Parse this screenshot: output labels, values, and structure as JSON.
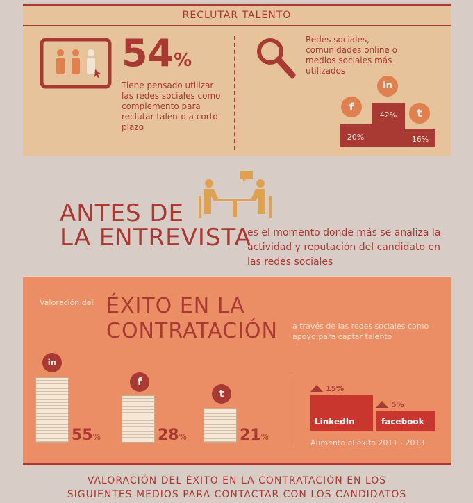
{
  "reclutar": {
    "title": "RECLUTAR TALENTO",
    "stat": "54",
    "stat_unit": "%",
    "description": "Tiene pensado utilizar las redes sociales como complemento para reclutar talento a corto plazo",
    "networks_label": "Redes sociales, comunidades online o medios sociales más utilizados",
    "podium": [
      {
        "network": "facebook",
        "icon": "facebook-icon",
        "value": "20%",
        "glyph": "f"
      },
      {
        "network": "linkedin",
        "icon": "linkedin-icon",
        "value": "42%",
        "glyph": "in"
      },
      {
        "network": "twitter",
        "icon": "twitter-icon",
        "value": "16%",
        "glyph": "t"
      }
    ]
  },
  "antes": {
    "title": "ANTES DE LA ENTREVISTA",
    "title_line1": "ANTES DE",
    "title_line2": "LA ENTREVISTA",
    "description": "es el momento donde más se analiza la actividad y reputación del candidato en las redes sociales"
  },
  "exito": {
    "prefix": "Valoración del",
    "title_line1": "ÉXITO EN LA",
    "title_line2": "CONTRATACIÓN",
    "subtitle": "a través de las redes sociales como apoyo para captar talento",
    "stacks": [
      {
        "network": "linkedin",
        "icon": "linkedin-icon",
        "glyph": "in",
        "value": "55",
        "unit": "%"
      },
      {
        "network": "facebook",
        "icon": "facebook-icon",
        "glyph": "f",
        "value": "28",
        "unit": "%"
      },
      {
        "network": "twitter",
        "icon": "twitter-icon",
        "glyph": "t",
        "value": "21",
        "unit": "%"
      }
    ],
    "growth": [
      {
        "label": "LinkedIn",
        "value": "15%"
      },
      {
        "label": "facebook",
        "value": "5%"
      }
    ],
    "growth_caption": "Aumento el éxito 2011 - 2013"
  },
  "bottom": {
    "line1": "VALORACIÓN DEL ÉXITO EN LA CONTRATACIÓN EN LOS",
    "line2": "SIGUIENTES MEDIOS PARA CONTACTAR CON LOS CANDIDATOS"
  },
  "colors": {
    "dark_red": "#a83a33",
    "tan": "#e7c39b",
    "salmon": "#ec8e65",
    "background": "#d8ccc6"
  }
}
